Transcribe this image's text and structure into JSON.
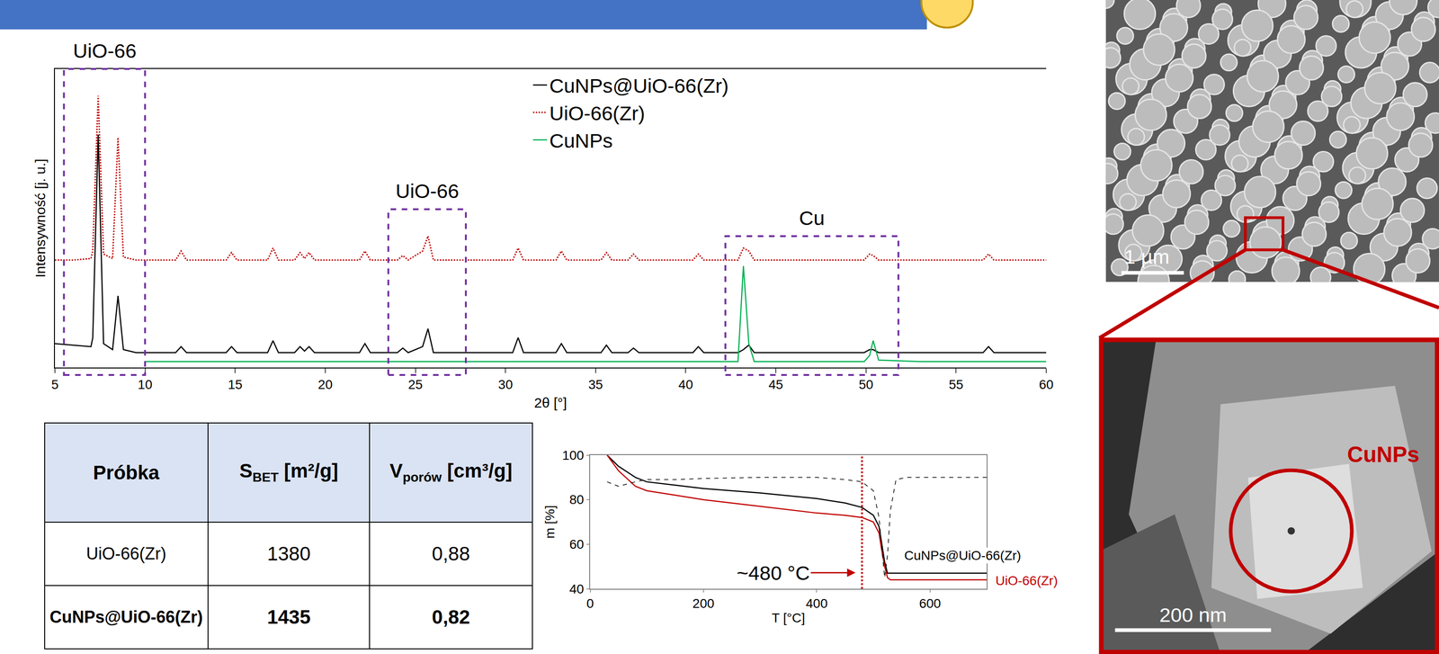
{
  "chart_data": [
    {
      "type": "line",
      "x_label": "2θ [°]",
      "y_label": "Intensywność [j. u.]",
      "x": [
        5,
        6,
        7,
        7.1,
        7.4,
        7.7,
        8.2,
        8.5,
        8.8,
        9.5,
        10,
        11.7,
        12,
        12.3,
        14.5,
        14.8,
        15.1,
        16.8,
        17.1,
        17.4,
        18.3,
        18.6,
        18.85,
        19.1,
        19.4,
        21.9,
        22.2,
        22.5,
        24,
        24.3,
        24.6,
        25.4,
        25.7,
        26,
        27.5,
        29.5,
        30.4,
        30.7,
        31,
        32.8,
        33.1,
        33.4,
        35.3,
        35.6,
        35.9,
        36.8,
        37.1,
        37.4,
        40.4,
        40.7,
        41,
        42.9,
        43.2,
        43.5,
        43.8,
        45,
        47,
        49.9,
        50.2,
        50.4,
        50.7,
        53,
        56.5,
        56.8,
        57.1,
        60
      ],
      "series": [
        {
          "name": "CuNPs@UiO-66(Zr)",
          "color": "#000000",
          "line_style": "solid",
          "values": [
            8,
            7.5,
            7,
            10,
            78,
            8,
            6,
            24,
            6,
            5,
            5,
            5,
            7,
            5,
            5,
            7,
            5,
            5,
            9,
            5,
            5,
            7,
            5.5,
            7,
            5,
            5,
            8,
            5,
            5,
            6.5,
            5,
            7,
            13,
            5,
            5,
            5,
            5,
            10,
            5,
            5,
            8,
            5,
            5,
            7.5,
            5,
            5,
            6.5,
            5,
            5,
            7,
            5,
            5,
            6,
            7.5,
            5,
            5,
            5,
            5,
            6,
            6,
            5,
            5,
            5,
            7,
            5,
            5
          ]
        },
        {
          "name": "UiO-66(Zr)",
          "color": "#c00000",
          "line_style": "dot",
          "values": [
            36,
            36,
            36.5,
            39,
            91,
            38,
            36.5,
            77,
            37,
            36,
            36,
            36,
            39,
            36,
            36,
            38.5,
            36,
            36,
            40,
            36,
            36,
            38.5,
            36.5,
            38.5,
            36,
            36,
            39,
            36,
            36,
            37.5,
            36,
            39,
            44,
            36,
            36,
            36,
            36,
            40,
            36,
            36,
            39,
            36,
            36,
            38.5,
            36,
            36,
            38,
            36,
            36,
            38,
            36,
            36,
            40,
            39,
            36,
            36,
            36,
            36,
            38,
            37.5,
            36,
            36,
            36,
            38,
            36,
            36
          ]
        },
        {
          "name": "CuNPs",
          "color": "#00b050",
          "line_style": "solid",
          "values": [
            null,
            null,
            null,
            null,
            null,
            null,
            null,
            null,
            null,
            null,
            2,
            2,
            2,
            2,
            2,
            2,
            2,
            2,
            2,
            2,
            2,
            2,
            2,
            2,
            2,
            2,
            2,
            2,
            2,
            2,
            2,
            2,
            2,
            2,
            2,
            2,
            2,
            2,
            2,
            2,
            2,
            2,
            2,
            2,
            2,
            2,
            2,
            2,
            2,
            2,
            2,
            2,
            34,
            8,
            2,
            2,
            2,
            2,
            4,
            9,
            2.5,
            2,
            2,
            2,
            2,
            2
          ]
        }
      ],
      "xlim": [
        5,
        60
      ],
      "xticks": [
        5,
        10,
        15,
        20,
        25,
        30,
        35,
        40,
        45,
        50,
        55,
        60
      ],
      "ylim": [
        0,
        100
      ],
      "tick_labels": "x",
      "legend": "top",
      "regions": [
        {
          "label": "UiO-66",
          "x0": 5.5,
          "x1": 10,
          "top": 100
        },
        {
          "label": "UiO-66",
          "x0": 23.5,
          "x1": 27.8,
          "top": 53
        },
        {
          "label": "Cu",
          "x0": 42.2,
          "x1": 51.8,
          "top": 44
        }
      ]
    },
    {
      "type": "line",
      "x_label": "T [°C]",
      "y_label": "m [%]",
      "x": [
        30,
        50,
        80,
        100,
        150,
        200,
        300,
        400,
        450,
        480,
        500,
        510,
        515,
        520,
        525,
        530,
        540,
        560,
        600,
        700
      ],
      "series": [
        {
          "name": "CuNPs@UiO-66(Zr)",
          "color": "#000000",
          "line_style": "solid",
          "values": [
            100,
            95,
            90,
            88,
            86.5,
            85,
            83,
            80.5,
            78.5,
            76.5,
            73,
            68,
            60,
            52,
            47,
            47,
            47,
            47,
            47,
            47
          ]
        },
        {
          "name": "UiO-66(Zr)",
          "color": "#c00000",
          "line_style": "solid",
          "values": [
            100,
            93,
            86,
            84,
            82,
            80,
            77,
            74,
            73,
            72,
            70,
            65,
            57,
            50,
            45,
            44,
            44,
            44,
            44,
            44
          ]
        },
        {
          "color": "#000000",
          "line_style": "dash",
          "values": [
            88,
            86,
            88,
            89,
            89,
            89.5,
            90,
            90,
            89,
            88,
            84,
            72,
            58,
            45,
            55,
            75,
            89,
            90,
            90,
            90
          ]
        }
      ],
      "xlim": [
        0,
        700
      ],
      "xticks": [
        0,
        200,
        400,
        600
      ],
      "ylim": [
        40,
        100
      ],
      "yticks": [
        40,
        60,
        80,
        100
      ],
      "markers": [
        {
          "x": 480,
          "label": "~480 °C",
          "color": "#c00000"
        }
      ]
    }
  ],
  "table": {
    "header": [
      {
        "text": "Próbka"
      },
      {
        "symbol": "S",
        "subscript": "BET",
        "unit": "[m²/g]"
      },
      {
        "symbol": "V",
        "subscript": "porów",
        "unit": "[cm³/g]"
      }
    ],
    "rows": [
      [
        "UiO-66(Zr)",
        "1380",
        "0,88"
      ],
      [
        "CuNPs@UiO-66(Zr)",
        "1435",
        "0,82"
      ]
    ]
  },
  "images": [
    {
      "scale_bar": "1 µm"
    },
    {
      "scale_bar": "200 nm",
      "label": "CuNPs"
    }
  ]
}
